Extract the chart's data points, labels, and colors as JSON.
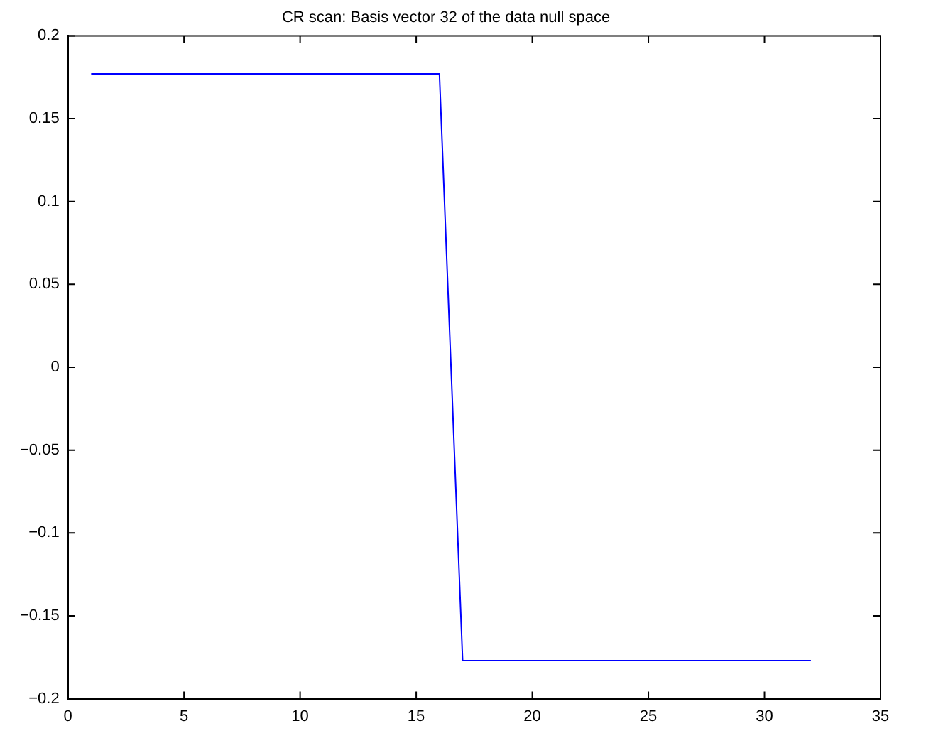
{
  "chart_data": {
    "type": "line",
    "title": "CR scan: Basis vector 32 of the data null space",
    "x": [
      1,
      16,
      17,
      32
    ],
    "series": [
      {
        "color": "#0000ff",
        "values": [
          0.177,
          0.177,
          -0.177,
          -0.177
        ]
      }
    ],
    "xlim": [
      0,
      35
    ],
    "xticks": [
      0,
      5,
      10,
      15,
      20,
      25,
      30,
      35
    ],
    "ylim": [
      -0.2,
      0.2
    ],
    "yticks": [
      -0.2,
      -0.15,
      -0.1,
      -0.05,
      0,
      0.05,
      0.1,
      0.15,
      0.2
    ],
    "grid": false,
    "legend": false,
    "marker": "none",
    "line_style": "solid"
  }
}
